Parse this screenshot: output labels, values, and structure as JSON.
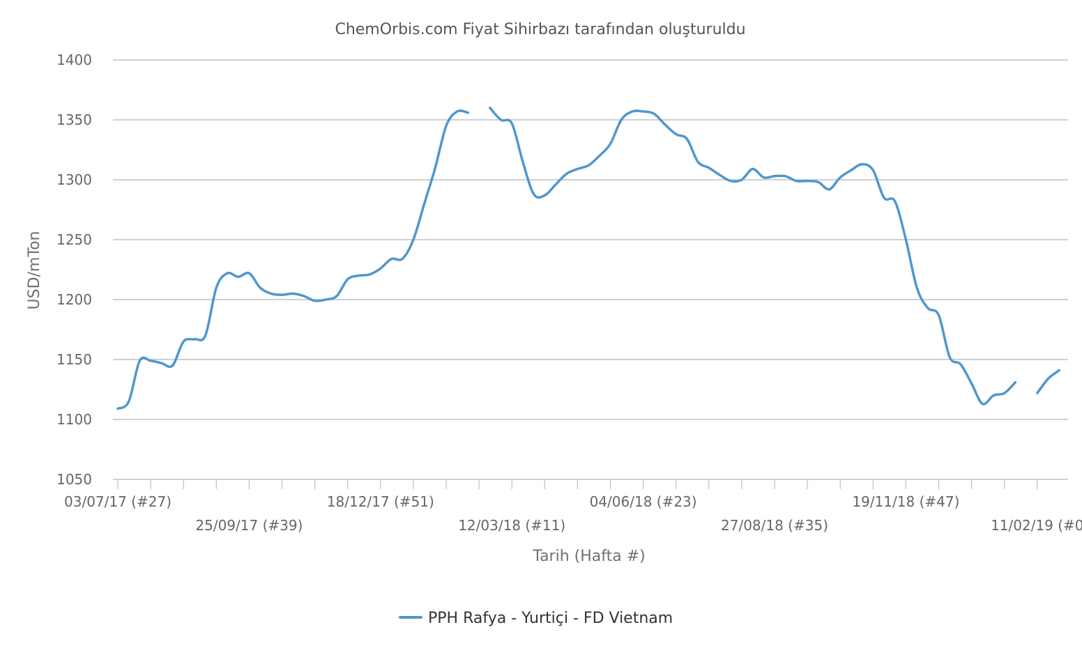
{
  "chart_data": {
    "type": "line",
    "title": "ChemOrbis.com Fiyat Sihirbazı tarafından oluşturuldu",
    "xlabel": "Tarih (Hafta #)",
    "ylabel": "USD/mTon",
    "ylim": [
      1050,
      1400
    ],
    "yticks": [
      1050,
      1100,
      1150,
      1200,
      1250,
      1300,
      1350,
      1400
    ],
    "grid": true,
    "legend_position": "bottom-center",
    "xtick_labels": [
      {
        "week": 0,
        "label": "03/07/17 (#27)"
      },
      {
        "week": 12,
        "label": "25/09/17 (#39)"
      },
      {
        "week": 24,
        "label": "18/12/17 (#51)"
      },
      {
        "week": 36,
        "label": "12/03/18 (#11)"
      },
      {
        "week": 48,
        "label": "04/06/18 (#23)"
      },
      {
        "week": 60,
        "label": "27/08/18 (#35)"
      },
      {
        "week": 72,
        "label": "19/11/18 (#47)"
      },
      {
        "week": 84,
        "label": "11/02/19 (#0"
      }
    ],
    "series": [
      {
        "name": "PPH Rafya - Yurtiçi  - FD Vietnam",
        "color": "#4f97cd",
        "segments": [
          [
            [
              0,
              1109
            ],
            [
              1,
              1115
            ],
            [
              2,
              1149
            ],
            [
              3,
              1149
            ],
            [
              4,
              1147
            ],
            [
              5,
              1145
            ],
            [
              6,
              1165
            ],
            [
              7,
              1167
            ],
            [
              8,
              1170
            ],
            [
              9,
              1210
            ],
            [
              10,
              1222
            ],
            [
              11,
              1219
            ],
            [
              12,
              1222
            ],
            [
              13,
              1210
            ],
            [
              14,
              1205
            ],
            [
              15,
              1204
            ],
            [
              16,
              1205
            ],
            [
              17,
              1203
            ],
            [
              18,
              1199
            ],
            [
              19,
              1200
            ],
            [
              20,
              1203
            ],
            [
              21,
              1217
            ],
            [
              22,
              1220
            ],
            [
              23,
              1221
            ],
            [
              24,
              1226
            ],
            [
              25,
              1234
            ],
            [
              26,
              1234
            ],
            [
              27,
              1250
            ],
            [
              28,
              1280
            ],
            [
              29,
              1310
            ],
            [
              30,
              1345
            ],
            [
              31,
              1357
            ],
            [
              32,
              1356
            ]
          ],
          [
            [
              34,
              1360
            ],
            [
              35,
              1350
            ],
            [
              36,
              1347
            ],
            [
              37,
              1315
            ],
            [
              38,
              1288
            ],
            [
              39,
              1287
            ],
            [
              40,
              1296
            ],
            [
              41,
              1305
            ],
            [
              42,
              1309
            ],
            [
              43,
              1312
            ],
            [
              44,
              1320
            ],
            [
              45,
              1330
            ],
            [
              46,
              1350
            ],
            [
              47,
              1357
            ],
            [
              48,
              1357
            ],
            [
              49,
              1355
            ],
            [
              50,
              1346
            ],
            [
              51,
              1338
            ],
            [
              52,
              1334
            ],
            [
              53,
              1315
            ],
            [
              54,
              1310
            ],
            [
              55,
              1304
            ],
            [
              56,
              1299
            ],
            [
              57,
              1300
            ],
            [
              58,
              1309
            ],
            [
              59,
              1302
            ],
            [
              60,
              1303
            ],
            [
              61,
              1303
            ],
            [
              62,
              1299
            ],
            [
              63,
              1299
            ],
            [
              64,
              1298
            ],
            [
              65,
              1292
            ],
            [
              66,
              1302
            ],
            [
              67,
              1308
            ],
            [
              68,
              1313
            ],
            [
              69,
              1308
            ],
            [
              70,
              1285
            ],
            [
              71,
              1282
            ],
            [
              72,
              1250
            ],
            [
              73,
              1210
            ],
            [
              74,
              1193
            ],
            [
              75,
              1187
            ],
            [
              76,
              1152
            ],
            [
              77,
              1146
            ],
            [
              78,
              1130
            ],
            [
              79,
              1113
            ],
            [
              80,
              1120
            ],
            [
              81,
              1122
            ],
            [
              82,
              1131
            ]
          ],
          [
            [
              84,
              1122
            ],
            [
              85,
              1134
            ],
            [
              86,
              1141
            ]
          ]
        ]
      }
    ]
  }
}
